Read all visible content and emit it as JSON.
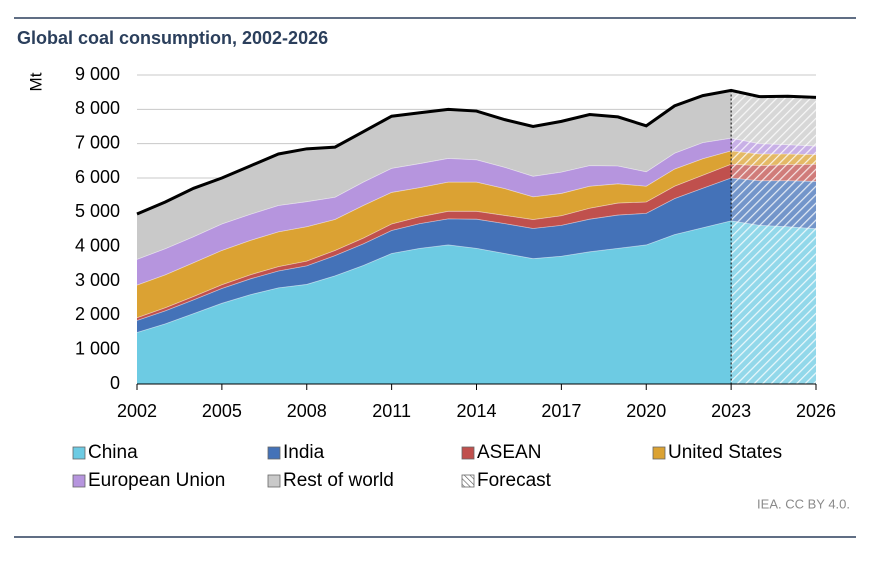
{
  "chart_data": {
    "type": "stacked_area",
    "title": "Global coal consumption, 2002-2026",
    "y_label": "Mt",
    "source": "IEA. CC BY 4.0.",
    "x": [
      2002,
      2003,
      2004,
      2005,
      2006,
      2007,
      2008,
      2009,
      2010,
      2011,
      2012,
      2013,
      2014,
      2015,
      2016,
      2017,
      2018,
      2019,
      2020,
      2021,
      2022,
      2023,
      2024,
      2025,
      2026
    ],
    "xlim": [
      2002,
      2026
    ],
    "xticks": [
      2002,
      2005,
      2008,
      2011,
      2014,
      2017,
      2020,
      2023,
      2026
    ],
    "ylim": [
      0,
      9000
    ],
    "yticks": [
      0,
      {
        "value": 1000,
        "label": "1 000"
      },
      {
        "value": 2000,
        "label": "2 000"
      },
      {
        "value": 3000,
        "label": "3 000"
      },
      {
        "value": 4000,
        "label": "4 000"
      },
      {
        "value": 5000,
        "label": "5 000"
      },
      {
        "value": 6000,
        "label": "6 000"
      },
      {
        "value": 7000,
        "label": "7 000"
      },
      {
        "value": 8000,
        "label": "8 000"
      },
      {
        "value": 9000,
        "label": "9 000"
      }
    ],
    "grid": true,
    "forecast_label": "Forecast",
    "forecast_range": [
      2023,
      2026
    ],
    "series": [
      {
        "name": "China",
        "color": "#6dcbe3",
        "values": [
          1500,
          1750,
          2050,
          2350,
          2600,
          2800,
          2900,
          3150,
          3450,
          3800,
          3950,
          4050,
          3950,
          3800,
          3650,
          3720,
          3850,
          3950,
          4050,
          4350,
          4550,
          4750,
          4620,
          4580,
          4520
        ]
      },
      {
        "name": "India",
        "color": "#4472b8",
        "values": [
          350,
          380,
          400,
          430,
          460,
          490,
          540,
          590,
          630,
          670,
          720,
          760,
          850,
          870,
          880,
          900,
          950,
          970,
          920,
          1050,
          1150,
          1250,
          1300,
          1340,
          1380
        ]
      },
      {
        "name": "ASEAN",
        "color": "#c0504d",
        "values": [
          80,
          90,
          100,
          110,
          120,
          130,
          140,
          150,
          170,
          190,
          200,
          220,
          230,
          240,
          260,
          280,
          320,
          350,
          330,
          360,
          380,
          400,
          440,
          470,
          500
        ]
      },
      {
        "name": "United States",
        "color": "#dba233",
        "values": [
          950,
          960,
          980,
          1000,
          1000,
          1010,
          1000,
          900,
          950,
          920,
          850,
          850,
          850,
          780,
          660,
          650,
          640,
          560,
          460,
          500,
          480,
          390,
          340,
          310,
          280
        ]
      },
      {
        "name": "European Union",
        "color": "#b695de",
        "values": [
          750,
          760,
          760,
          770,
          760,
          770,
          730,
          650,
          680,
          700,
          700,
          690,
          650,
          620,
          600,
          620,
          600,
          520,
          420,
          460,
          470,
          370,
          300,
          270,
          250
        ]
      },
      {
        "name": "Rest of world",
        "color": "#c9c9c9",
        "values": [
          1320,
          1360,
          1410,
          1340,
          1410,
          1500,
          1540,
          1460,
          1470,
          1520,
          1480,
          1430,
          1420,
          1390,
          1450,
          1480,
          1490,
          1430,
          1340,
          1380,
          1370,
          1390,
          1370,
          1410,
          1420
        ]
      }
    ]
  }
}
